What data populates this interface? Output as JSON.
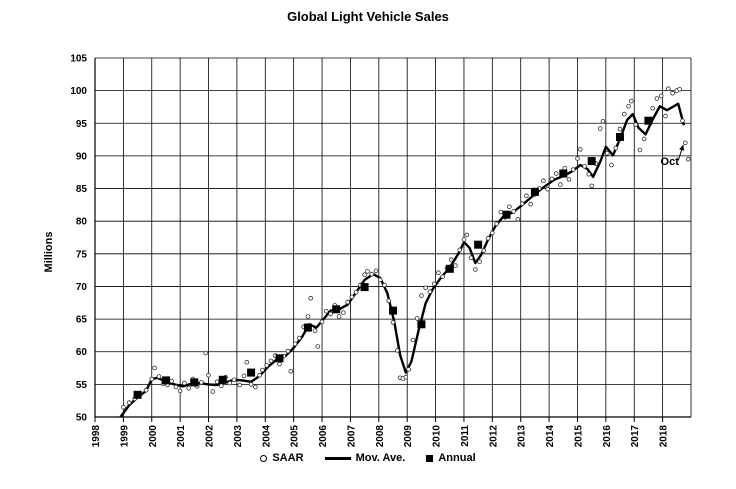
{
  "chart_data": {
    "type": "line",
    "title": "Global Light Vehicle Sales",
    "ylabel": "Millions",
    "xlabel": "",
    "ylim": [
      50,
      105
    ],
    "xlim": [
      1998,
      2019
    ],
    "y_ticks": [
      50,
      55,
      60,
      65,
      70,
      75,
      80,
      85,
      90,
      95,
      100,
      105
    ],
    "x_ticks": [
      "1998",
      "1999",
      "2000",
      "2001",
      "2002",
      "2003",
      "2004",
      "2005",
      "2006",
      "2007",
      "2008",
      "2009",
      "2010",
      "2011",
      "2012",
      "2013",
      "2014",
      "2015",
      "2016",
      "2017",
      "2018"
    ],
    "grid": true,
    "legend_position": "bottom",
    "legend": [
      "SAAR",
      "Mov. Ave.",
      "Annual"
    ],
    "annotations": [
      {
        "text": "Oct",
        "x": 2018.8,
        "y": 92.0
      }
    ],
    "series": [
      {
        "name": "SAAR",
        "style": "scatter-open-circle",
        "points": [
          [
            1999.0,
            51.5
          ],
          [
            1999.2,
            52.2
          ],
          [
            1999.4,
            52.8
          ],
          [
            1999.6,
            53.6
          ],
          [
            1999.8,
            54.1
          ],
          [
            2000.0,
            55.8
          ],
          [
            2000.1,
            57.5
          ],
          [
            2000.25,
            56.2
          ],
          [
            2000.4,
            55.1
          ],
          [
            2000.55,
            54.9
          ],
          [
            2000.7,
            55.5
          ],
          [
            2000.85,
            54.6
          ],
          [
            2001.0,
            54.0
          ],
          [
            2001.15,
            55.2
          ],
          [
            2001.3,
            54.4
          ],
          [
            2001.45,
            55.8
          ],
          [
            2001.6,
            54.7
          ],
          [
            2001.75,
            55.3
          ],
          [
            2001.9,
            59.8
          ],
          [
            2002.0,
            56.4
          ],
          [
            2002.15,
            53.9
          ],
          [
            2002.3,
            55.4
          ],
          [
            2002.45,
            54.8
          ],
          [
            2002.6,
            56.1
          ],
          [
            2002.75,
            55.2
          ],
          [
            2002.9,
            55.7
          ],
          [
            2003.1,
            54.9
          ],
          [
            2003.25,
            56.3
          ],
          [
            2003.35,
            58.4
          ],
          [
            2003.5,
            55.0
          ],
          [
            2003.65,
            54.6
          ],
          [
            2003.8,
            56.4
          ],
          [
            2003.9,
            57.2
          ],
          [
            2004.05,
            57.9
          ],
          [
            2004.2,
            58.6
          ],
          [
            2004.35,
            59.4
          ],
          [
            2004.5,
            58.1
          ],
          [
            2004.65,
            59.3
          ],
          [
            2004.8,
            60.1
          ],
          [
            2004.9,
            57.0
          ],
          [
            2005.05,
            61.2
          ],
          [
            2005.2,
            62.1
          ],
          [
            2005.35,
            63.8
          ],
          [
            2005.5,
            65.4
          ],
          [
            2005.6,
            68.2
          ],
          [
            2005.75,
            63.2
          ],
          [
            2005.85,
            60.8
          ],
          [
            2006.0,
            64.6
          ],
          [
            2006.15,
            66.2
          ],
          [
            2006.3,
            65.8
          ],
          [
            2006.45,
            67.1
          ],
          [
            2006.6,
            65.4
          ],
          [
            2006.75,
            66.0
          ],
          [
            2006.9,
            67.6
          ],
          [
            2007.05,
            68.4
          ],
          [
            2007.2,
            69.1
          ],
          [
            2007.35,
            70.2
          ],
          [
            2007.5,
            71.8
          ],
          [
            2007.6,
            72.3
          ],
          [
            2007.75,
            71.9
          ],
          [
            2007.9,
            72.4
          ],
          [
            2008.05,
            71.0
          ],
          [
            2008.2,
            70.2
          ],
          [
            2008.35,
            67.8
          ],
          [
            2008.5,
            64.5
          ],
          [
            2008.65,
            60.2
          ],
          [
            2008.75,
            56.0
          ],
          [
            2008.85,
            55.9
          ],
          [
            2008.95,
            56.1
          ],
          [
            2009.05,
            57.3
          ],
          [
            2009.2,
            61.8
          ],
          [
            2009.35,
            65.1
          ],
          [
            2009.5,
            68.6
          ],
          [
            2009.65,
            69.8
          ],
          [
            2009.8,
            69.2
          ],
          [
            2009.95,
            70.4
          ],
          [
            2010.1,
            72.1
          ],
          [
            2010.25,
            71.5
          ],
          [
            2010.4,
            72.8
          ],
          [
            2010.55,
            74.1
          ],
          [
            2010.7,
            73.2
          ],
          [
            2010.85,
            75.6
          ],
          [
            2011.0,
            77.2
          ],
          [
            2011.1,
            77.9
          ],
          [
            2011.25,
            74.4
          ],
          [
            2011.4,
            72.6
          ],
          [
            2011.55,
            73.8
          ],
          [
            2011.7,
            75.5
          ],
          [
            2011.85,
            77.4
          ],
          [
            2012.0,
            78.2
          ],
          [
            2012.15,
            79.6
          ],
          [
            2012.3,
            81.4
          ],
          [
            2012.45,
            80.6
          ],
          [
            2012.6,
            82.2
          ],
          [
            2012.75,
            81.5
          ],
          [
            2012.9,
            80.3
          ],
          [
            2013.05,
            82.7
          ],
          [
            2013.2,
            83.9
          ],
          [
            2013.35,
            82.6
          ],
          [
            2013.5,
            84.1
          ],
          [
            2013.65,
            85.0
          ],
          [
            2013.8,
            86.2
          ],
          [
            2013.95,
            84.9
          ],
          [
            2014.1,
            86.5
          ],
          [
            2014.25,
            87.3
          ],
          [
            2014.4,
            85.6
          ],
          [
            2014.55,
            88.1
          ],
          [
            2014.7,
            86.4
          ],
          [
            2014.85,
            87.9
          ],
          [
            2015.0,
            89.6
          ],
          [
            2015.1,
            91.0
          ],
          [
            2015.25,
            88.4
          ],
          [
            2015.4,
            87.2
          ],
          [
            2015.5,
            85.4
          ],
          [
            2015.65,
            88.8
          ],
          [
            2015.8,
            94.2
          ],
          [
            2015.9,
            95.3
          ],
          [
            2016.05,
            90.4
          ],
          [
            2016.2,
            88.6
          ],
          [
            2016.35,
            91.2
          ],
          [
            2016.5,
            94.1
          ],
          [
            2016.65,
            96.4
          ],
          [
            2016.8,
            97.6
          ],
          [
            2016.9,
            98.4
          ],
          [
            2017.05,
            94.8
          ],
          [
            2017.2,
            90.9
          ],
          [
            2017.35,
            92.6
          ],
          [
            2017.5,
            95.2
          ],
          [
            2017.65,
            97.3
          ],
          [
            2017.8,
            98.8
          ],
          [
            2017.95,
            99.2
          ],
          [
            2018.1,
            96.1
          ],
          [
            2018.2,
            100.3
          ],
          [
            2018.35,
            99.6
          ],
          [
            2018.5,
            100.0
          ],
          [
            2018.6,
            100.2
          ],
          [
            2018.7,
            95.4
          ],
          [
            2018.8,
            92.0
          ],
          [
            2018.9,
            89.5
          ]
        ]
      },
      {
        "name": "Mov. Ave.",
        "style": "line",
        "points": [
          [
            1998.9,
            50.0
          ],
          [
            1999.2,
            51.8
          ],
          [
            1999.5,
            53.0
          ],
          [
            1999.8,
            54.0
          ],
          [
            2000.0,
            55.8
          ],
          [
            2000.2,
            56.0
          ],
          [
            2000.5,
            55.4
          ],
          [
            2000.8,
            55.0
          ],
          [
            2001.1,
            54.7
          ],
          [
            2001.4,
            55.1
          ],
          [
            2001.7,
            55.2
          ],
          [
            2002.0,
            55.0
          ],
          [
            2002.3,
            54.9
          ],
          [
            2002.6,
            55.3
          ],
          [
            2002.9,
            55.7
          ],
          [
            2003.2,
            55.6
          ],
          [
            2003.5,
            55.4
          ],
          [
            2003.8,
            56.3
          ],
          [
            2004.1,
            57.7
          ],
          [
            2004.4,
            58.8
          ],
          [
            2004.7,
            59.3
          ],
          [
            2005.0,
            60.6
          ],
          [
            2005.3,
            62.3
          ],
          [
            2005.55,
            64.2
          ],
          [
            2005.8,
            63.7
          ],
          [
            2006.0,
            64.7
          ],
          [
            2006.3,
            66.3
          ],
          [
            2006.6,
            66.5
          ],
          [
            2006.9,
            67.2
          ],
          [
            2007.2,
            69.1
          ],
          [
            2007.5,
            71.0
          ],
          [
            2007.8,
            71.9
          ],
          [
            2008.05,
            71.3
          ],
          [
            2008.3,
            69.0
          ],
          [
            2008.55,
            64.5
          ],
          [
            2008.75,
            59.5
          ],
          [
            2008.95,
            56.8
          ],
          [
            2009.15,
            58.5
          ],
          [
            2009.4,
            63.2
          ],
          [
            2009.65,
            67.4
          ],
          [
            2009.9,
            69.6
          ],
          [
            2010.2,
            71.4
          ],
          [
            2010.5,
            72.9
          ],
          [
            2010.8,
            75.0
          ],
          [
            2011.0,
            76.8
          ],
          [
            2011.2,
            75.9
          ],
          [
            2011.4,
            73.6
          ],
          [
            2011.6,
            74.8
          ],
          [
            2011.85,
            77.2
          ],
          [
            2012.1,
            79.2
          ],
          [
            2012.4,
            80.8
          ],
          [
            2012.7,
            81.3
          ],
          [
            2013.0,
            82.3
          ],
          [
            2013.3,
            83.4
          ],
          [
            2013.6,
            84.5
          ],
          [
            2013.9,
            85.5
          ],
          [
            2014.2,
            86.4
          ],
          [
            2014.5,
            86.9
          ],
          [
            2014.8,
            87.6
          ],
          [
            2015.1,
            88.6
          ],
          [
            2015.35,
            88.0
          ],
          [
            2015.55,
            86.8
          ],
          [
            2015.8,
            89.1
          ],
          [
            2016.0,
            91.4
          ],
          [
            2016.25,
            90.1
          ],
          [
            2016.5,
            92.6
          ],
          [
            2016.75,
            95.5
          ],
          [
            2016.95,
            96.4
          ],
          [
            2017.15,
            94.3
          ],
          [
            2017.4,
            93.3
          ],
          [
            2017.65,
            95.6
          ],
          [
            2017.9,
            97.6
          ],
          [
            2018.15,
            97.0
          ],
          [
            2018.35,
            97.5
          ],
          [
            2018.55,
            98.0
          ],
          [
            2018.75,
            94.7
          ]
        ]
      },
      {
        "name": "Annual",
        "style": "filled-square",
        "points": [
          [
            1999.5,
            53.4
          ],
          [
            2000.5,
            55.6
          ],
          [
            2001.5,
            55.3
          ],
          [
            2002.5,
            55.7
          ],
          [
            2003.5,
            56.8
          ],
          [
            2004.5,
            59.0
          ],
          [
            2005.5,
            63.7
          ],
          [
            2006.5,
            66.5
          ],
          [
            2007.5,
            69.9
          ],
          [
            2008.5,
            66.3
          ],
          [
            2009.5,
            64.2
          ],
          [
            2010.5,
            72.7
          ],
          [
            2011.5,
            76.4
          ],
          [
            2012.5,
            81.0
          ],
          [
            2013.5,
            84.5
          ],
          [
            2014.5,
            87.3
          ],
          [
            2015.5,
            89.2
          ],
          [
            2016.5,
            92.9
          ],
          [
            2017.5,
            95.4
          ]
        ]
      }
    ]
  }
}
